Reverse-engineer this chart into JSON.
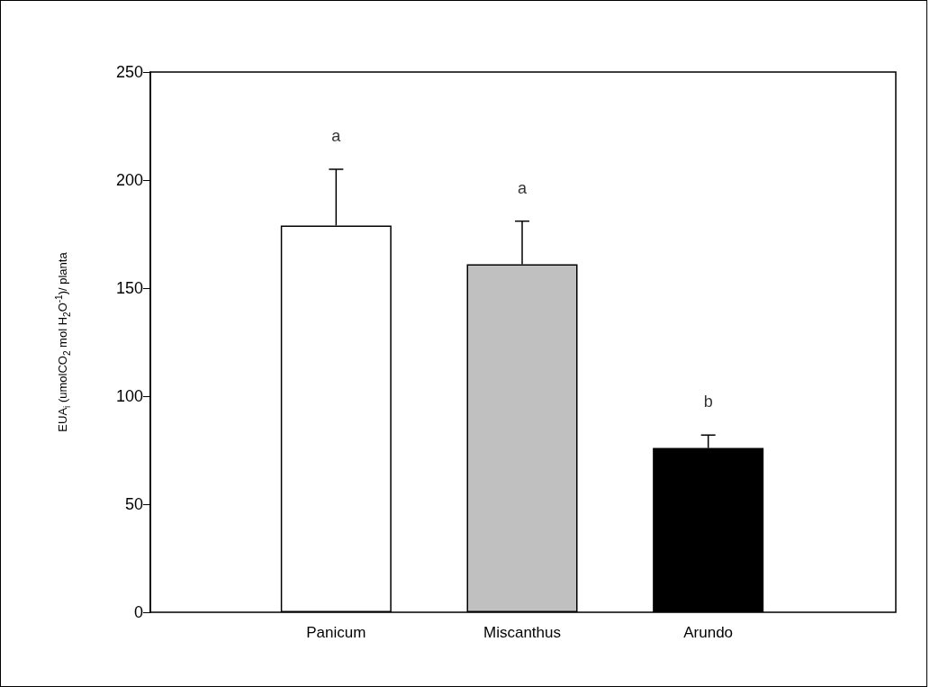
{
  "chart_data": {
    "type": "bar",
    "ylabel": "EUA$_{i}$ (umolCO$_{2}$ mol H$_{2}$O$^{-1}$)/ planta",
    "categories": [
      "Panicum",
      "Miscanthus",
      "Arundo"
    ],
    "values": [
      179,
      161,
      76
    ],
    "colors": [
      "#ffffff",
      "#c0c0c0",
      "#000000"
    ],
    "errors": [
      [
        179,
        205
      ],
      [
        161,
        181
      ],
      [
        76,
        82
      ]
    ],
    "ylim": [
      0,
      250
    ],
    "yticks": [
      0,
      50,
      100,
      150,
      200,
      250
    ],
    "annotations": [
      "a",
      "a",
      "b"
    ],
    "grid": false
  }
}
